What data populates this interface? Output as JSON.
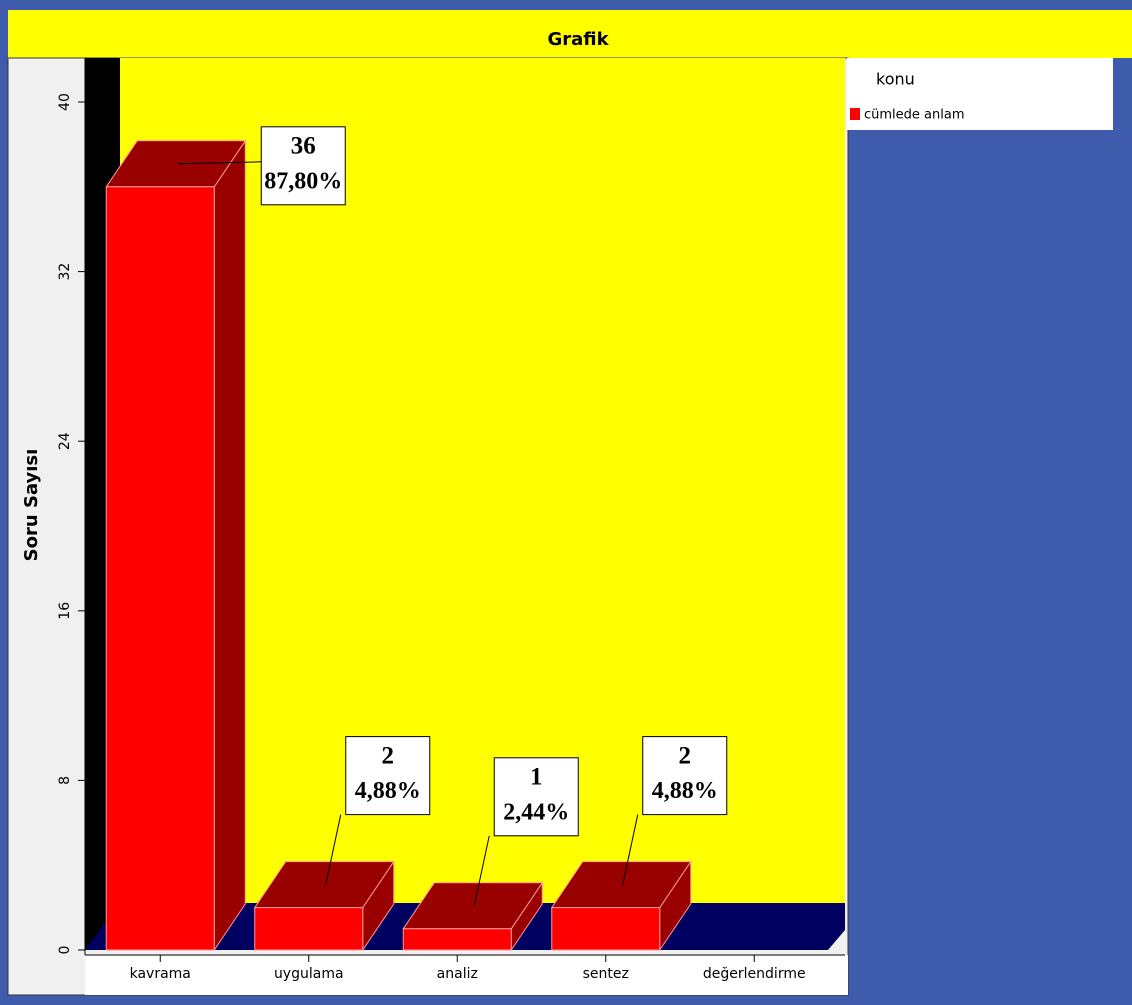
{
  "chart_data": {
    "type": "bar3d",
    "title": "Grafik",
    "y_label": "Soru Sayısı",
    "categories": [
      "kavrama",
      "uygulama",
      "analiz",
      "sentez",
      "değerlendirme"
    ],
    "series": [
      {
        "name": "cümlede anlam",
        "color": "#ff0000",
        "values": [
          36,
          2,
          1,
          2,
          0
        ]
      }
    ],
    "percentages": [
      87.8,
      4.88,
      2.44,
      4.88,
      null
    ],
    "percentage_labels": [
      "87,80%",
      "4,88%",
      "2,44%",
      "4,88%",
      null
    ],
    "legend_title": "konu",
    "ylim": [
      0,
      40
    ],
    "yticks": [
      0,
      8,
      16,
      24,
      32,
      40
    ]
  }
}
